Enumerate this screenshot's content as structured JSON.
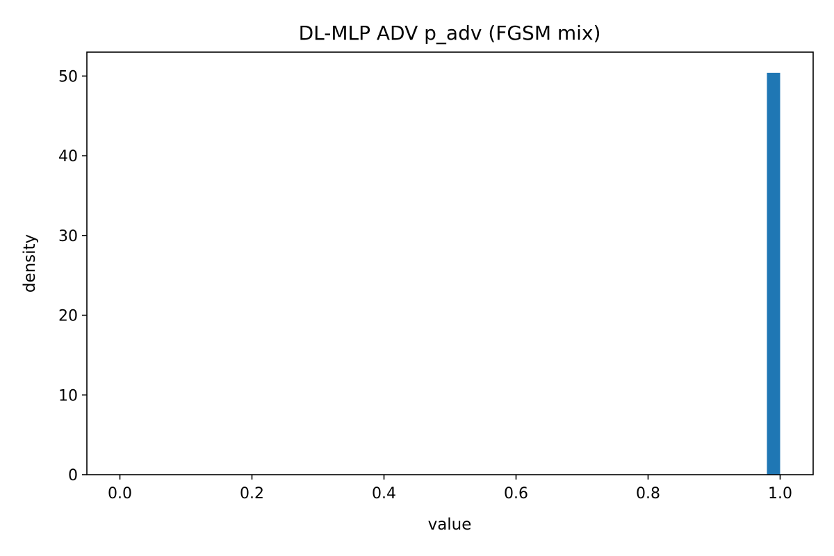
{
  "chart_data": {
    "type": "bar",
    "title": "DL-MLP ADV p_adv (FGSM mix)",
    "xlabel": "value",
    "ylabel": "density",
    "xlim": [
      -0.05,
      1.05
    ],
    "ylim": [
      0,
      53
    ],
    "x_ticks": [
      0.0,
      0.2,
      0.4,
      0.6,
      0.8,
      1.0
    ],
    "x_tick_labels": [
      "0.0",
      "0.2",
      "0.4",
      "0.6",
      "0.8",
      "1.0"
    ],
    "y_ticks": [
      0,
      10,
      20,
      30,
      40,
      50
    ],
    "y_tick_labels": [
      "0",
      "10",
      "20",
      "30",
      "40",
      "50"
    ],
    "grid": false,
    "legend": "none",
    "bar_color": "#1f77b4",
    "bins": [
      {
        "x0": 0.98,
        "x1": 1.0,
        "value": 50.4
      }
    ]
  }
}
